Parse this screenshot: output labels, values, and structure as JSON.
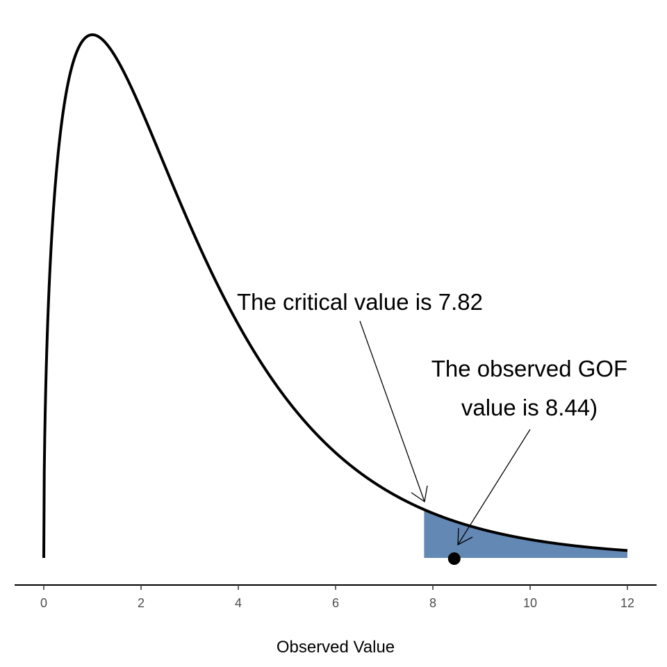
{
  "chart_data": {
    "type": "area",
    "distribution": "chi-square",
    "df": 3,
    "x_range": [
      0,
      12
    ],
    "xlim": [
      -0.6,
      12.6
    ],
    "xticks": [
      0,
      2,
      4,
      6,
      8,
      10,
      12
    ],
    "xlabel": "Observed Value",
    "ylabel": "",
    "grid": false,
    "legend": "none",
    "critical_value": 7.82,
    "observed_value": 8.44,
    "shaded_region": [
      7.82,
      12
    ],
    "annotations": [
      {
        "id": "critical",
        "lines": [
          "The critical value is 7.82"
        ],
        "points_to": 7.82
      },
      {
        "id": "observed",
        "lines": [
          "The observed GOF",
          "value is 8.44)"
        ],
        "points_to": 8.44
      }
    ],
    "colors": {
      "curve": "#000000",
      "shade": "#6388b4",
      "point": "#000000",
      "axis": "#000000"
    }
  }
}
